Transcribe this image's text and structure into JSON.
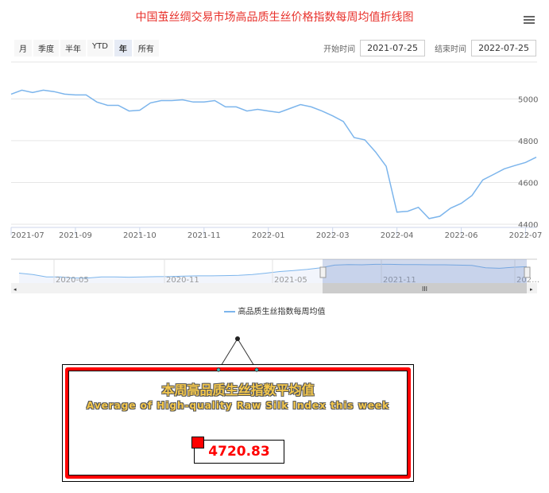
{
  "title": "中国茧丝绸交易市场高品质生丝价格指数每周均值折线图",
  "menu_icon": "hamburger-menu-icon",
  "range_selector": {
    "buttons": [
      "月",
      "季度",
      "半年",
      "YTD",
      "年",
      "所有"
    ],
    "selected": "年",
    "start_label": "开始时间",
    "start_value": "2021-07-25",
    "end_label": "结束时间",
    "end_value": "2022-07-25"
  },
  "chart_data": {
    "type": "line",
    "title": "中国茧丝绸交易市场高品质生丝价格指数每周均值折线图",
    "series": [
      {
        "name": "高品质生丝指数每周均值",
        "color": "#7cb5ec",
        "values": [
          5023,
          5042,
          5031,
          5042,
          5035,
          5023,
          5019,
          5019,
          4985,
          4969,
          4969,
          4942,
          4946,
          4981,
          4992,
          4992,
          4996,
          4985,
          4985,
          4992,
          4962,
          4962,
          4942,
          4950,
          4942,
          4935,
          4954,
          4973,
          4962,
          4942,
          4919,
          4892,
          4815,
          4804,
          4746,
          4677,
          4458,
          4462,
          4481,
          4427,
          4438,
          4477,
          4500,
          4538,
          4612,
          4638,
          4665,
          4681,
          4696,
          4720.83
        ]
      }
    ],
    "x_ticks": [
      {
        "index": 0,
        "label": "2021-07"
      },
      {
        "index": 6,
        "label": "2021-09"
      },
      {
        "index": 12,
        "label": "2021-10"
      },
      {
        "index": 18,
        "label": "2021-11"
      },
      {
        "index": 24,
        "label": "2022-01"
      },
      {
        "index": 30,
        "label": "2022-03"
      },
      {
        "index": 36,
        "label": "2022-04"
      },
      {
        "index": 42,
        "label": "2022-06"
      },
      {
        "index": 48,
        "label": "2022-07"
      }
    ],
    "y_ticks": [
      4400,
      4600,
      4800,
      5000
    ],
    "ylim": [
      4400,
      5150
    ],
    "grid": true,
    "legend": "bottom-center",
    "navigator": {
      "labels": [
        "2020-05",
        "2020-11",
        "2021-05",
        "2021-11",
        "202…"
      ],
      "values": [
        4700,
        4650,
        4560,
        4560,
        4520,
        4520,
        4560,
        4560,
        4550,
        4560,
        4570,
        4575,
        4590,
        4600,
        4600,
        4610,
        4620,
        4650,
        4700,
        4760,
        4800,
        4840,
        4900,
        5000,
        5020,
        5010,
        5030,
        5030,
        5020,
        5020,
        5010,
        5010,
        5000,
        4990,
        4900,
        4880,
        4920,
        4940
      ],
      "selected_fraction": [
        0.6,
        1.0
      ]
    }
  },
  "card": {
    "title_cn": "本周高品质生丝指数平均值",
    "title_en": "Average of High-quality Raw Silk Index this week",
    "value": "4720.83"
  }
}
